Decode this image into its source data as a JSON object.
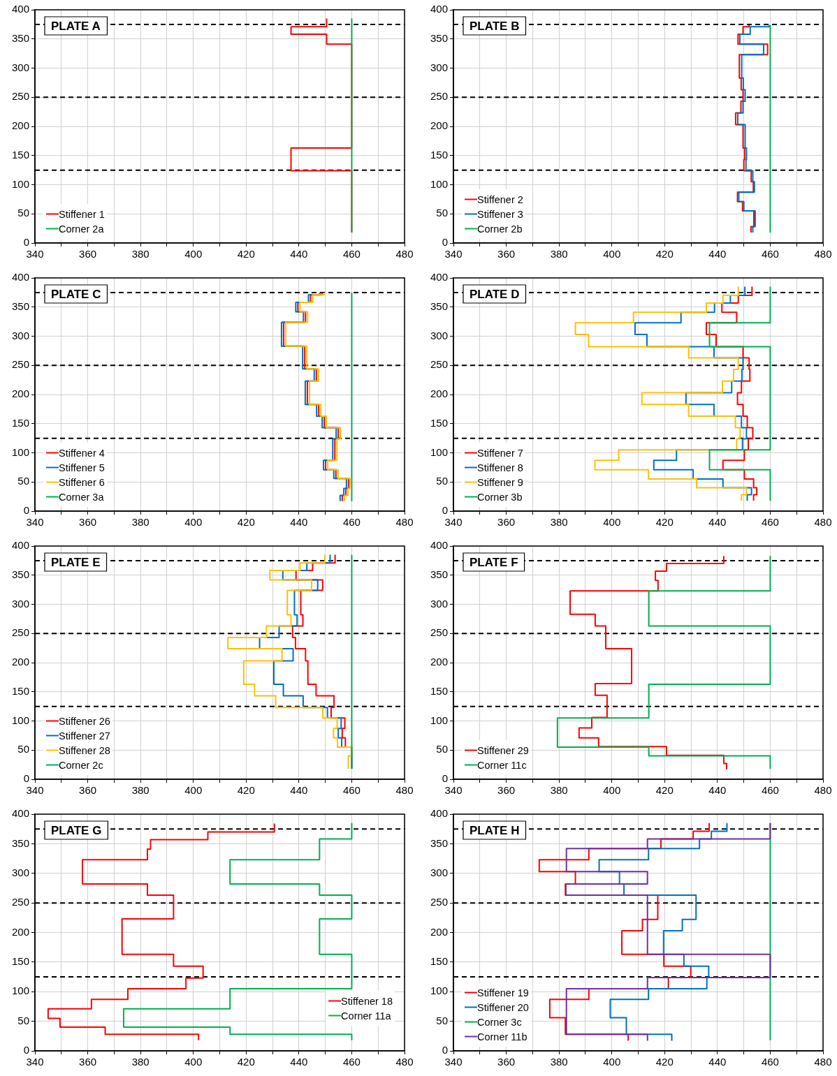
{
  "chart_data": [
    {
      "type": "step",
      "title": "PLATE A",
      "xlim": [
        340,
        480
      ],
      "ylim": [
        0,
        400
      ],
      "xticks": [
        340,
        {
          "value": 350,
          "label": null
        },
        360,
        {
          "value": 370,
          "label": null
        },
        380,
        {
          "value": 390,
          "label": null
        },
        400,
        {
          "value": 410,
          "label": null
        },
        420,
        {
          "value": 430,
          "label": null
        },
        440,
        {
          "value": 450,
          "label": null
        },
        460,
        {
          "value": 470,
          "label": null
        },
        480
      ],
      "yticks": [
        0,
        50,
        100,
        150,
        200,
        250,
        300,
        350,
        400
      ],
      "grid": true,
      "legend": "bottom left",
      "ref_lines": [
        {
          "axis": "y",
          "value": 375,
          "line_style": "dashed",
          "color": "#000000"
        },
        {
          "axis": "y",
          "value": 250,
          "line_style": "dashed",
          "color": "#000000"
        },
        {
          "axis": "y",
          "value": 125,
          "line_style": "dashed",
          "color": "#000000"
        }
      ],
      "series": [
        {
          "name": "Stiffener 1",
          "color": "#ff0000",
          "x": [
            450.5,
            437,
            450.5,
            460,
            437,
            460,
            460
          ],
          "values": [
            385,
            371,
            358,
            341,
            163,
            124,
            18
          ]
        },
        {
          "name": "Corner 2a",
          "color": "#00b050",
          "x": [
            460,
            460
          ],
          "values": [
            385,
            18
          ]
        }
      ]
    },
    {
      "type": "step",
      "title": "PLATE B",
      "xlim": [
        340,
        480
      ],
      "ylim": [
        0,
        400
      ],
      "xticks": [
        340,
        {
          "value": 350,
          "label": null
        },
        360,
        {
          "value": 370,
          "label": null
        },
        380,
        {
          "value": 390,
          "label": null
        },
        400,
        {
          "value": 410,
          "label": null
        },
        420,
        {
          "value": 430,
          "label": null
        },
        440,
        {
          "value": 450,
          "label": null
        },
        460,
        {
          "value": 470,
          "label": null
        },
        480
      ],
      "yticks": [
        0,
        50,
        100,
        150,
        200,
        250,
        300,
        350,
        400
      ],
      "grid": true,
      "legend": "bottom left",
      "ref_lines": [
        {
          "axis": "y",
          "value": 375,
          "line_style": "dashed",
          "color": "#000000"
        },
        {
          "axis": "y",
          "value": 250,
          "line_style": "dashed",
          "color": "#000000"
        },
        {
          "axis": "y",
          "value": 125,
          "line_style": "dashed",
          "color": "#000000"
        }
      ],
      "series": [
        {
          "name": "Stiffener 2",
          "color": "#ff0000",
          "x": [
            452,
            449.7,
            447.8,
            459,
            448.3,
            449,
            449.7,
            448.9,
            446.9,
            449.7,
            450.3,
            450,
            452.8,
            453.6,
            447.6,
            449.5,
            453.8,
            452.7,
            452.7
          ],
          "values": [
            374,
            371,
            358,
            341,
            323,
            283,
            263,
            243,
            223,
            203,
            163,
            143,
            124,
            105,
            87,
            71,
            55,
            28,
            18
          ]
        },
        {
          "name": "Stiffener 3",
          "color": "#0070c0",
          "x": [
            459.6,
            452.4,
            448.5,
            457.5,
            449.2,
            449.8,
            450.5,
            449.7,
            447.7,
            450.5,
            451,
            450.8,
            453.4,
            454,
            448.1,
            450,
            454.3,
            453.4,
            453.4
          ],
          "values": [
            374,
            371,
            358,
            341,
            323,
            283,
            263,
            243,
            223,
            203,
            163,
            143,
            124,
            105,
            87,
            71,
            55,
            28,
            18
          ]
        },
        {
          "name": "Corner 2b",
          "color": "#00b050",
          "x": [
            460,
            460
          ],
          "values": [
            374,
            18
          ]
        }
      ]
    },
    {
      "type": "step",
      "title": "PLATE C",
      "xlim": [
        340,
        480
      ],
      "ylim": [
        0,
        400
      ],
      "xticks": [
        340,
        {
          "value": 350,
          "label": null
        },
        360,
        {
          "value": 370,
          "label": null
        },
        380,
        {
          "value": 390,
          "label": null
        },
        400,
        {
          "value": 410,
          "label": null
        },
        420,
        {
          "value": 430,
          "label": null
        },
        440,
        {
          "value": 450,
          "label": null
        },
        460,
        {
          "value": 470,
          "label": null
        },
        480
      ],
      "yticks": [
        0,
        50,
        100,
        150,
        200,
        250,
        300,
        350,
        400
      ],
      "grid": true,
      "legend": "bottom left",
      "ref_lines": [
        {
          "axis": "y",
          "value": 375,
          "line_style": "dashed",
          "color": "#000000"
        },
        {
          "axis": "y",
          "value": 250,
          "line_style": "dashed",
          "color": "#000000"
        },
        {
          "axis": "y",
          "value": 125,
          "line_style": "dashed",
          "color": "#000000"
        }
      ],
      "series": [
        {
          "name": "Stiffener 4",
          "color": "#ff0000",
          "x": [
            448.7,
            444.4,
            439.6,
            442.5,
            434.2,
            442.2,
            446.6,
            443.2,
            447.5,
            449.6,
            454.9,
            453.6,
            450.1,
            454,
            458.8,
            457.8,
            456.4,
            456.4
          ],
          "values": [
            375,
            371,
            358,
            342,
            324,
            283,
            244,
            223,
            183,
            163,
            143,
            124,
            87,
            71,
            56,
            39,
            27,
            17
          ]
        },
        {
          "name": "Stiffener 5",
          "color": "#0070c0",
          "x": [
            447.9,
            443.6,
            438.8,
            441.7,
            433.4,
            441.4,
            445.8,
            442.4,
            446.7,
            448.8,
            454.1,
            452.8,
            449.3,
            453.2,
            458,
            457,
            455.6,
            455.6
          ],
          "values": [
            375,
            371,
            358,
            342,
            324,
            283,
            244,
            223,
            183,
            163,
            143,
            124,
            87,
            71,
            56,
            39,
            27,
            17
          ]
        },
        {
          "name": "Stiffener 6",
          "color": "#ffc000",
          "x": [
            449.5,
            445.2,
            440.4,
            443.3,
            435,
            443,
            447.4,
            444,
            448.3,
            450.4,
            455.7,
            454.4,
            450.9,
            454.8,
            459.3,
            458.6,
            457.2,
            457.2
          ],
          "values": [
            375,
            371,
            358,
            342,
            324,
            283,
            244,
            223,
            183,
            163,
            143,
            124,
            87,
            71,
            56,
            39,
            27,
            17
          ]
        },
        {
          "name": "Corner 3a",
          "color": "#00b050",
          "x": [
            460,
            460
          ],
          "values": [
            375,
            17
          ]
        }
      ]
    },
    {
      "type": "step",
      "title": "PLATE D",
      "xlim": [
        340,
        480
      ],
      "ylim": [
        0,
        400
      ],
      "xticks": [
        340,
        {
          "value": 350,
          "label": null
        },
        360,
        {
          "value": 370,
          "label": null
        },
        380,
        {
          "value": 390,
          "label": null
        },
        400,
        {
          "value": 410,
          "label": null
        },
        420,
        {
          "value": 430,
          "label": null
        },
        440,
        {
          "value": 450,
          "label": null
        },
        460,
        {
          "value": 470,
          "label": null
        },
        480
      ],
      "yticks": [
        0,
        50,
        100,
        150,
        200,
        250,
        300,
        350,
        400
      ],
      "grid": true,
      "legend": "bottom left",
      "ref_lines": [
        {
          "axis": "y",
          "value": 375,
          "line_style": "dashed",
          "color": "#000000"
        },
        {
          "axis": "y",
          "value": 250,
          "line_style": "dashed",
          "color": "#000000"
        },
        {
          "axis": "y",
          "value": 125,
          "line_style": "dashed",
          "color": "#000000"
        }
      ],
      "series": [
        {
          "name": "Stiffener 7",
          "color": "#ff0000",
          "x": [
            453.1,
            447.9,
            441.7,
            447.3,
            435.8,
            439.5,
            449.7,
            452,
            452.3,
            449.1,
            447.6,
            449.7,
            451.3,
            453.4,
            451.7,
            450.2,
            442.1,
            450.2,
            453.7,
            454.9,
            453.7,
            453.7
          ],
          "values": [
            385,
            370,
            357,
            341,
            323,
            303,
            282,
            263,
            243,
            223,
            203,
            183,
            163,
            143,
            124,
            105,
            87,
            71,
            55,
            40,
            28,
            18
          ]
        },
        {
          "name": "Stiffener 8",
          "color": "#0070c0",
          "x": [
            450.4,
            444.9,
            438.9,
            426.2,
            408.8,
            413.3,
            438.7,
            449.7,
            449.3,
            445.4,
            428.1,
            438.7,
            449.1,
            451,
            449.5,
            424.5,
            415.9,
            430.8,
            442.1,
            452.9,
            451.3,
            451.3
          ],
          "values": [
            385,
            370,
            357,
            341,
            323,
            303,
            282,
            263,
            243,
            223,
            203,
            183,
            163,
            143,
            124,
            105,
            87,
            71,
            55,
            40,
            28,
            18
          ]
        },
        {
          "name": "Stiffener 9",
          "color": "#ffc000",
          "x": [
            447.9,
            442.1,
            435.8,
            408.2,
            386.2,
            391.2,
            429.1,
            447.9,
            446.1,
            441.9,
            411.4,
            429.1,
            446.8,
            448.6,
            447.3,
            402.6,
            393.6,
            413.9,
            432.1,
            451,
            449.1,
            449.1
          ],
          "values": [
            385,
            370,
            357,
            341,
            323,
            303,
            282,
            263,
            243,
            223,
            203,
            183,
            163,
            143,
            124,
            105,
            87,
            71,
            55,
            40,
            28,
            18
          ]
        },
        {
          "name": "Corner 3b",
          "color": "#00b050",
          "x": [
            460,
            437,
            460,
            437,
            460,
            460
          ],
          "values": [
            385,
            323,
            282,
            105,
            71,
            18
          ]
        }
      ]
    },
    {
      "type": "step",
      "title": "PLATE E",
      "xlim": [
        340,
        480
      ],
      "ylim": [
        0,
        400
      ],
      "xticks": [
        340,
        {
          "value": 350,
          "label": null
        },
        360,
        {
          "value": 370,
          "label": null
        },
        380,
        {
          "value": 390,
          "label": null
        },
        400,
        {
          "value": 410,
          "label": null
        },
        420,
        {
          "value": 430,
          "label": null
        },
        440,
        {
          "value": 450,
          "label": null
        },
        460,
        {
          "value": 470,
          "label": null
        },
        480
      ],
      "yticks": [
        0,
        50,
        100,
        150,
        200,
        250,
        300,
        350,
        400
      ],
      "grid": true,
      "legend": "bottom left",
      "ref_lines": [
        {
          "axis": "y",
          "value": 375,
          "line_style": "dashed",
          "color": "#000000"
        },
        {
          "axis": "y",
          "value": 250,
          "line_style": "dashed",
          "color": "#000000"
        },
        {
          "axis": "y",
          "value": 125,
          "line_style": "dashed",
          "color": "#000000"
        }
      ],
      "series": [
        {
          "name": "Stiffener 26",
          "color": "#ff0000",
          "x": [
            453.7,
            445.2,
            438.9,
            449,
            440.7,
            441.5,
            437.6,
            438.7,
            442.5,
            443.4,
            446.5,
            453.3,
            452.2,
            457.4,
            456.4,
            457.6,
            460,
            460
          ],
          "values": [
            385,
            371,
            358,
            342,
            324,
            282,
            263,
            243,
            224,
            203,
            163,
            143,
            123,
            105,
            87,
            71,
            55,
            18
          ]
        },
        {
          "name": "Stiffener 27",
          "color": "#0070c0",
          "x": [
            451.8,
            443,
            433.9,
            447.1,
            438.3,
            439.3,
            432.5,
            425.1,
            437.8,
            430.5,
            434.1,
            441.6,
            450.8,
            456,
            454.9,
            456.2,
            460,
            460
          ],
          "values": [
            385,
            371,
            358,
            342,
            324,
            282,
            263,
            243,
            224,
            203,
            163,
            143,
            123,
            105,
            87,
            71,
            55,
            18
          ]
        },
        {
          "name": "Stiffener 28",
          "color": "#ffc000",
          "x": [
            449.8,
            440.4,
            429,
            444.8,
            435.6,
            437,
            427.7,
            413.1,
            433.6,
            419.1,
            423.2,
            431.2,
            449,
            454.5,
            453.1,
            454.6,
            460,
            458.7,
            458.7
          ],
          "values": [
            385,
            371,
            358,
            342,
            324,
            282,
            263,
            243,
            224,
            203,
            163,
            143,
            123,
            105,
            87,
            71,
            55,
            40,
            18
          ]
        },
        {
          "name": "Corner 2c",
          "color": "#00b050",
          "x": [
            460,
            460
          ],
          "values": [
            385,
            18
          ]
        }
      ]
    },
    {
      "type": "step",
      "title": "PLATE F",
      "xlim": [
        340,
        480
      ],
      "ylim": [
        0,
        400
      ],
      "xticks": [
        340,
        {
          "value": 350,
          "label": null
        },
        360,
        {
          "value": 370,
          "label": null
        },
        380,
        {
          "value": 390,
          "label": null
        },
        400,
        {
          "value": 410,
          "label": null
        },
        420,
        {
          "value": 430,
          "label": null
        },
        440,
        {
          "value": 450,
          "label": null
        },
        460,
        {
          "value": 470,
          "label": null
        },
        480
      ],
      "yticks": [
        0,
        50,
        100,
        150,
        200,
        250,
        300,
        350,
        400
      ],
      "grid": true,
      "legend": "bottom left",
      "ref_lines": [
        {
          "axis": "y",
          "value": 375,
          "line_style": "dashed",
          "color": "#000000"
        },
        {
          "axis": "y",
          "value": 250,
          "line_style": "dashed",
          "color": "#000000"
        },
        {
          "axis": "y",
          "value": 125,
          "line_style": "dashed",
          "color": "#000000"
        }
      ],
      "series": [
        {
          "name": "Stiffener 29",
          "color": "#ff0000",
          "x": [
            442.4,
            420.7,
            416.5,
            417.5,
            384.2,
            393.7,
            397.7,
            407.5,
            393.7,
            398.2,
            392.4,
            387.6,
            395,
            420.7,
            442.4,
            443.5,
            443.5
          ],
          "values": [
            383,
            370,
            357,
            341,
            323,
            283,
            263,
            224,
            164,
            144,
            106,
            88,
            71,
            56,
            41,
            27,
            17
          ]
        },
        {
          "name": "Corner 11c",
          "color": "#00b050",
          "x": [
            460,
            414,
            460,
            414,
            379.4,
            414,
            460,
            460
          ],
          "values": [
            383,
            323,
            263,
            163,
            105,
            55,
            40,
            18
          ]
        }
      ]
    },
    {
      "type": "step",
      "title": "PLATE G",
      "xlim": [
        340,
        480
      ],
      "ylim": [
        0,
        400
      ],
      "xticks": [
        340,
        {
          "value": 350,
          "label": null
        },
        360,
        {
          "value": 370,
          "label": null
        },
        380,
        {
          "value": 390,
          "label": null
        },
        400,
        {
          "value": 410,
          "label": null
        },
        420,
        {
          "value": 430,
          "label": null
        },
        440,
        {
          "value": 450,
          "label": null
        },
        460,
        {
          "value": 470,
          "label": null
        },
        480
      ],
      "yticks": [
        0,
        50,
        100,
        150,
        200,
        250,
        300,
        350,
        400
      ],
      "grid": true,
      "legend": "bottom right",
      "ref_lines": [
        {
          "axis": "y",
          "value": 375,
          "line_style": "dashed",
          "color": "#000000"
        },
        {
          "axis": "y",
          "value": 250,
          "line_style": "dashed",
          "color": "#000000"
        },
        {
          "axis": "y",
          "value": 125,
          "line_style": "dashed",
          "color": "#000000"
        }
      ],
      "series": [
        {
          "name": "Stiffener 18",
          "color": "#ff0000",
          "x": [
            430.7,
            405.5,
            383.8,
            382.6,
            358,
            382.6,
            392.5,
            373,
            392.5,
            403.7,
            397.2,
            375.2,
            361.4,
            345,
            349.5,
            366.6,
            402,
            402
          ],
          "values": [
            384,
            370,
            357,
            341,
            323,
            282,
            263,
            223,
            163,
            143,
            123,
            105,
            87,
            71,
            55,
            40,
            28,
            18
          ]
        },
        {
          "name": "Corner 11a",
          "color": "#00b050",
          "x": [
            460,
            447.8,
            413.9,
            447.8,
            460,
            447.8,
            460,
            413.9,
            373.6,
            413.9,
            460,
            460
          ],
          "values": [
            385,
            358,
            323,
            282,
            263,
            223,
            163,
            105,
            71,
            40,
            28,
            18
          ]
        }
      ]
    },
    {
      "type": "step",
      "title": "PLATE H",
      "xlim": [
        340,
        480
      ],
      "ylim": [
        0,
        400
      ],
      "xticks": [
        340,
        {
          "value": 350,
          "label": null
        },
        360,
        {
          "value": 370,
          "label": null
        },
        380,
        {
          "value": 390,
          "label": null
        },
        400,
        {
          "value": 410,
          "label": null
        },
        420,
        {
          "value": 430,
          "label": null
        },
        440,
        {
          "value": 450,
          "label": null
        },
        460,
        {
          "value": 470,
          "label": null
        },
        480
      ],
      "yticks": [
        0,
        50,
        100,
        150,
        200,
        250,
        300,
        350,
        400
      ],
      "grid": true,
      "legend": "bottom left",
      "ref_lines": [
        {
          "axis": "y",
          "value": 375,
          "line_style": "dashed",
          "color": "#000000"
        },
        {
          "axis": "y",
          "value": 250,
          "line_style": "dashed",
          "color": "#000000"
        },
        {
          "axis": "y",
          "value": 125,
          "line_style": "dashed",
          "color": "#000000"
        }
      ],
      "series": [
        {
          "name": "Stiffener 19",
          "color": "#ff0000",
          "x": [
            436.9,
            430.8,
            418.6,
            391.3,
            372.5,
            386.2,
            382.4,
            417.4,
            411.6,
            403.8,
            419.7,
            429.9,
            421.4,
            391.3,
            376.5,
            382.4,
            406.2,
            406.2
          ],
          "values": [
            385,
            371,
            358,
            342,
            323,
            303,
            282,
            263,
            222,
            203,
            163,
            143,
            124,
            105,
            87,
            56,
            28,
            17
          ]
        },
        {
          "name": "Stiffener 20",
          "color": "#0070c0",
          "x": [
            443.6,
            437.7,
            433.2,
            413.9,
            395.2,
            402.9,
            404.6,
            431.9,
            426.7,
            419.6,
            427.3,
            436.7,
            436,
            413.9,
            399.4,
            405.5,
            422.7,
            422.7
          ],
          "values": [
            385,
            371,
            358,
            342,
            323,
            303,
            282,
            263,
            222,
            203,
            163,
            143,
            124,
            105,
            87,
            56,
            28,
            17
          ]
        },
        {
          "name": "Corner 3c",
          "color": "#00b050",
          "x": [
            460,
            460
          ],
          "values": [
            385,
            18
          ]
        },
        {
          "name": "Corner 11b",
          "color": "#7030a0",
          "x": [
            460,
            413.5,
            382.8,
            413.5,
            382.6,
            413.5,
            460,
            413.5,
            382.8,
            413.5,
            413.5
          ],
          "values": [
            385,
            358,
            342,
            303,
            282,
            263,
            163,
            124,
            105,
            28,
            17
          ]
        }
      ]
    }
  ]
}
